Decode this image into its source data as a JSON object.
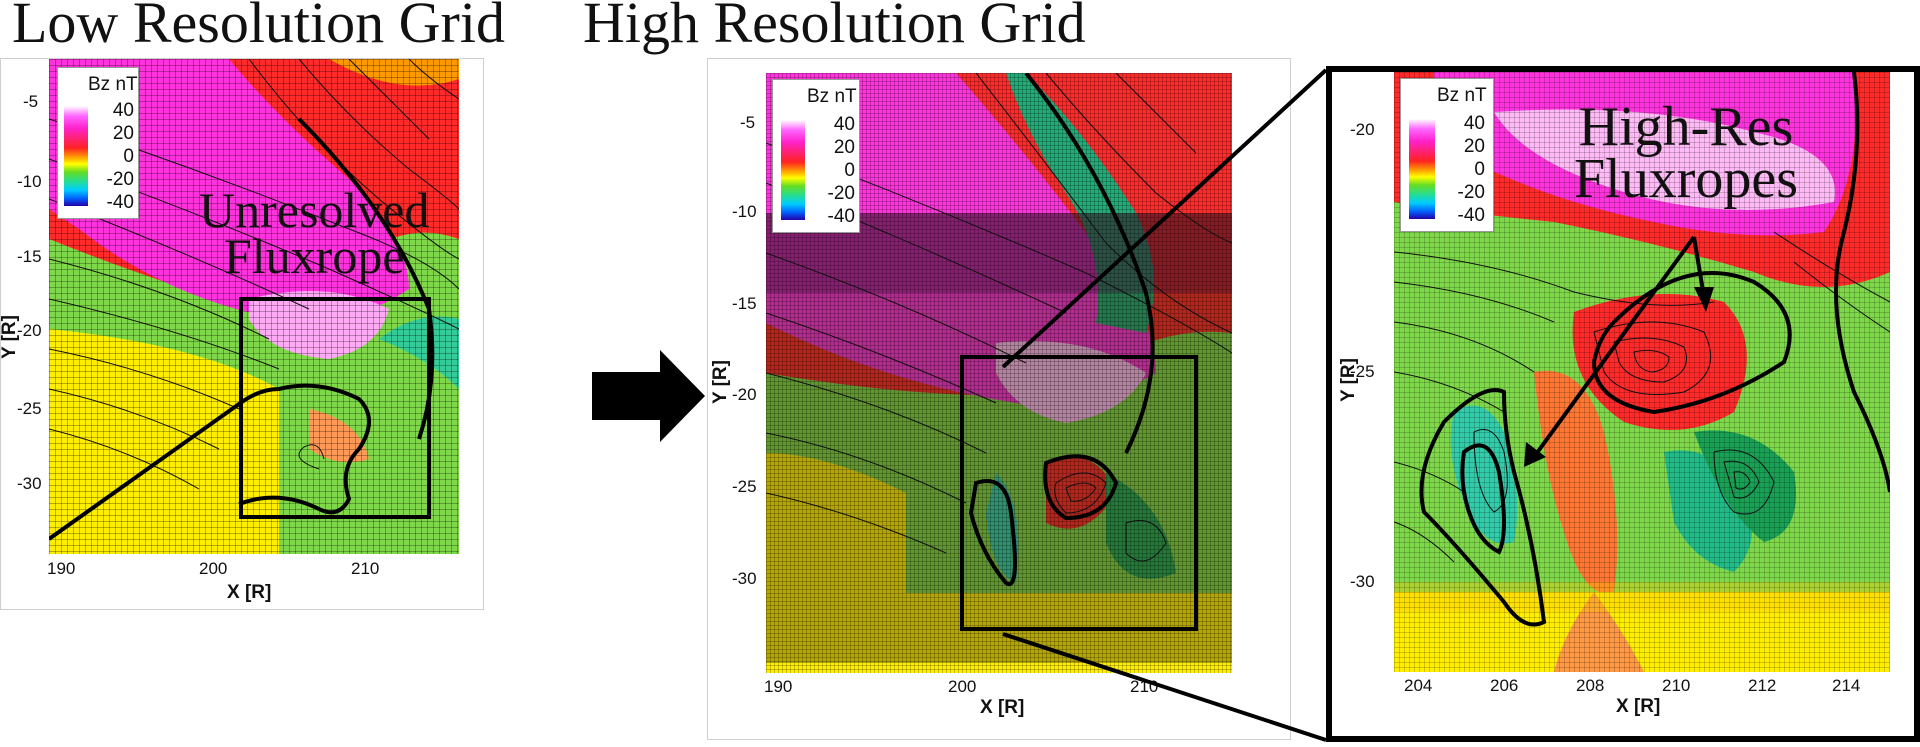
{
  "titles": {
    "left": "Low Resolution Grid",
    "right": "High Resolution Grid"
  },
  "legend": {
    "title": "Bz nT",
    "values": [
      "40",
      "20",
      "0",
      "-20",
      "-40"
    ]
  },
  "annotations": {
    "unresolved": [
      "Unresolved",
      "Fluxrope"
    ],
    "highres": [
      "High-Res",
      "Fluxropes"
    ]
  },
  "panels": {
    "left": {
      "xlabel": "X [R]",
      "ylabel": "Y [R]",
      "xticks": [
        "190",
        "200",
        "210"
      ],
      "yticks": [
        "-5",
        "-10",
        "-15",
        "-20",
        "-25",
        "-30"
      ]
    },
    "middle": {
      "xlabel": "X [R]",
      "ylabel": "Y [R]",
      "xticks": [
        "190",
        "200",
        "210"
      ],
      "yticks": [
        "-5",
        "-10",
        "-15",
        "-20",
        "-25",
        "-30"
      ]
    },
    "zoom": {
      "xlabel": "X [R]",
      "ylabel": "Y [R]",
      "xticks": [
        "204",
        "206",
        "208",
        "210",
        "212",
        "214"
      ],
      "yticks": [
        "-20",
        "-25",
        "-30"
      ]
    }
  },
  "colors": {
    "magenta": "#ff33dd",
    "pink": "#ff99ee",
    "red": "#ff2a2a",
    "orange": "#ff9900",
    "yellow": "#ffee00",
    "green": "#7fd84a",
    "cyan": "#33ccaa"
  }
}
